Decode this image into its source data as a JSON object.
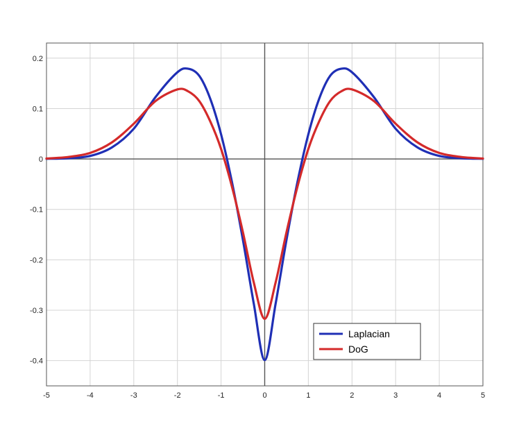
{
  "chart_data": {
    "type": "line",
    "title": "",
    "xlabel": "",
    "ylabel": "",
    "xlim": [
      -5,
      5
    ],
    "ylim": [
      -0.45,
      0.23
    ],
    "grid": true,
    "legend_position": "bottom-right",
    "x_ticks": [
      -5,
      -4,
      -3,
      -2,
      -1,
      0,
      1,
      2,
      3,
      4,
      5
    ],
    "x_tick_labels": [
      "-5",
      "-4",
      "-3",
      "-2",
      "-1",
      "0",
      "1",
      "2",
      "3",
      "4",
      "5"
    ],
    "y_ticks": [
      0.2,
      0.1,
      0,
      -0.1,
      -0.2,
      -0.3,
      -0.4
    ],
    "y_tick_labels": [
      "0.2",
      "0.1",
      "0",
      "-0.1",
      "-0.2",
      "-0.3",
      "-0.4"
    ],
    "x": [
      -5,
      -4.5,
      -4,
      -3.5,
      -3,
      -2.5,
      -2,
      -1.75,
      -1.5,
      -1.25,
      -1,
      -0.75,
      -0.5,
      -0.25,
      0,
      0.25,
      0.5,
      0.75,
      1,
      1.25,
      1.5,
      1.75,
      2,
      2.5,
      3,
      3.5,
      4,
      4.5,
      5
    ],
    "series": [
      {
        "name": "Laplacian",
        "color": "#1f2fb5",
        "values": [
          0.0004,
          0.0015,
          0.006,
          0.023,
          0.06,
          0.123,
          0.172,
          0.179,
          0.165,
          0.12,
          0.049,
          -0.046,
          -0.16,
          -0.287,
          -0.399,
          -0.287,
          -0.16,
          -0.046,
          0.049,
          0.12,
          0.165,
          0.179,
          0.172,
          0.123,
          0.06,
          0.023,
          0.006,
          0.0015,
          0.0004
        ]
      },
      {
        "name": "DoG",
        "color": "#d42a2a",
        "values": [
          0.001,
          0.004,
          0.012,
          0.033,
          0.07,
          0.115,
          0.138,
          0.134,
          0.115,
          0.075,
          0.02,
          -0.055,
          -0.145,
          -0.245,
          -0.317,
          -0.245,
          -0.145,
          -0.055,
          0.02,
          0.075,
          0.115,
          0.134,
          0.138,
          0.115,
          0.07,
          0.033,
          0.012,
          0.004,
          0.001
        ]
      }
    ]
  }
}
